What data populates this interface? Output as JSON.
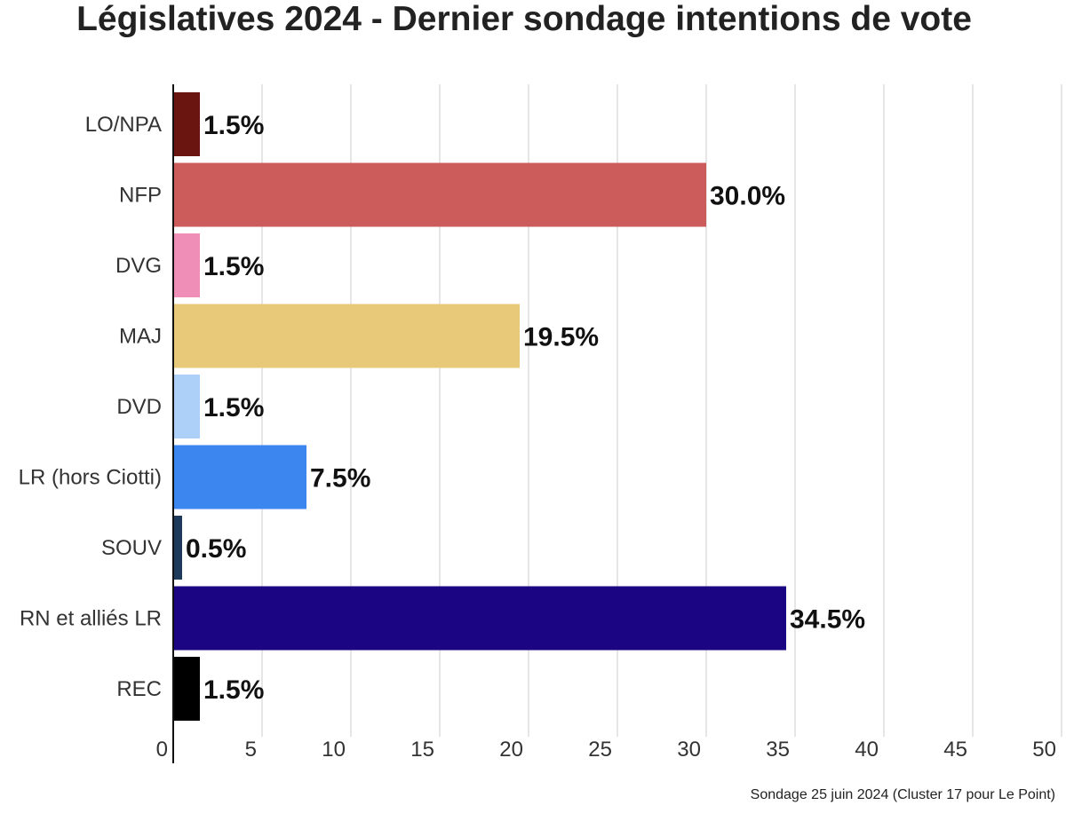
{
  "chart_data": {
    "type": "bar",
    "orientation": "horizontal",
    "title": "Législatives 2024 - Dernier sondage intentions de vote",
    "categories": [
      "LO/NPA",
      "NFP",
      "DVG",
      "MAJ",
      "DVD",
      "LR (hors Ciotti)",
      "SOUV",
      "RN et alliés LR",
      "REC"
    ],
    "values": [
      1.5,
      30.0,
      1.5,
      19.5,
      1.5,
      7.5,
      0.5,
      34.5,
      1.5
    ],
    "value_labels": [
      "1.5%",
      "30.0%",
      "1.5%",
      "19.5%",
      "1.5%",
      "7.5%",
      "0.5%",
      "34.5%",
      "1.5%"
    ],
    "colors": [
      "#6b1510",
      "#cc5b5b",
      "#ef8fb8",
      "#e8c979",
      "#acd0f7",
      "#3c86f0",
      "#1e3a5a",
      "#1b0583",
      "#000000"
    ],
    "xlim": [
      0,
      50
    ],
    "xticks": [
      "0",
      "5",
      "10",
      "15",
      "20",
      "25",
      "30",
      "35",
      "40",
      "45",
      "50"
    ],
    "grid": true,
    "source": "Sondage 25 juin 2024 (Cluster 17 pour Le Point)"
  }
}
